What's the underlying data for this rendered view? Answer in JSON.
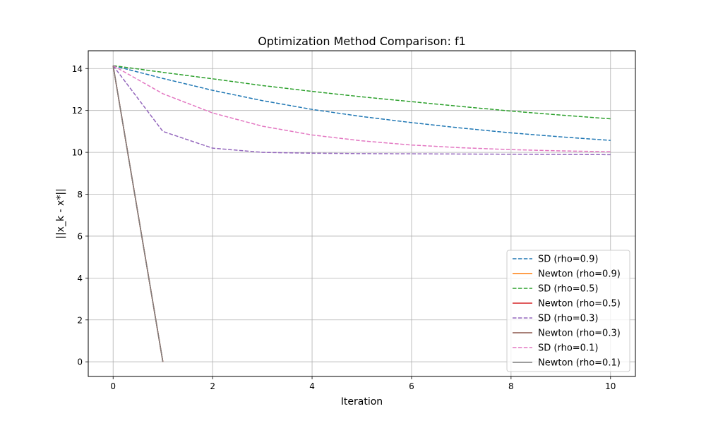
{
  "chart_data": {
    "type": "line",
    "title": "Optimization Method Comparison: f1",
    "xlabel": "Iteration",
    "ylabel": "||x_k - x*||",
    "xlim": [
      -0.5,
      10.5
    ],
    "ylim": [
      -0.7,
      14.85
    ],
    "xticks": [
      0,
      2,
      4,
      6,
      8,
      10
    ],
    "yticks": [
      0,
      2,
      4,
      6,
      8,
      10,
      12,
      14
    ],
    "grid": true,
    "legend_position": "lower-right",
    "series": [
      {
        "name": "SD (rho=0.9)",
        "method": "SD",
        "color": "#1f77b4",
        "dash": true,
        "x": [
          0,
          1,
          2,
          3,
          4,
          5,
          6,
          7,
          8,
          9,
          10
        ],
        "y": [
          14.14,
          13.53,
          12.96,
          12.47,
          12.05,
          11.71,
          11.42,
          11.16,
          10.93,
          10.74,
          10.57
        ]
      },
      {
        "name": "Newton (rho=0.9)",
        "method": "Newton",
        "color": "#ff7f0e",
        "dash": false,
        "x": [
          0,
          1
        ],
        "y": [
          14.14,
          0
        ]
      },
      {
        "name": "SD (rho=0.5)",
        "method": "SD",
        "color": "#2ca02c",
        "dash": true,
        "x": [
          0,
          1,
          2,
          3,
          4,
          5,
          6,
          7,
          8,
          9,
          10
        ],
        "y": [
          14.14,
          13.82,
          13.51,
          13.19,
          12.91,
          12.65,
          12.42,
          12.19,
          11.97,
          11.78,
          11.6
        ]
      },
      {
        "name": "Newton (rho=0.5)",
        "method": "Newton",
        "color": "#d62728",
        "dash": false,
        "x": [
          0,
          1
        ],
        "y": [
          14.14,
          0
        ]
      },
      {
        "name": "SD (rho=0.3)",
        "method": "SD",
        "color": "#9467bd",
        "dash": true,
        "x": [
          0,
          1,
          2,
          3,
          4,
          5,
          6,
          7,
          8,
          9,
          10
        ],
        "y": [
          14.14,
          11.0,
          10.2,
          10.0,
          9.96,
          9.94,
          9.93,
          9.92,
          9.91,
          9.9,
          9.89
        ]
      },
      {
        "name": "Newton (rho=0.3)",
        "method": "Newton",
        "color": "#8c564b",
        "dash": false,
        "x": [
          0,
          1
        ],
        "y": [
          14.14,
          0
        ]
      },
      {
        "name": "SD (rho=0.1)",
        "method": "SD",
        "color": "#e377c2",
        "dash": true,
        "x": [
          0,
          1,
          2,
          3,
          4,
          5,
          6,
          7,
          8,
          9,
          10
        ],
        "y": [
          14.14,
          12.8,
          11.88,
          11.25,
          10.83,
          10.55,
          10.35,
          10.22,
          10.13,
          10.07,
          10.03
        ]
      },
      {
        "name": "Newton (rho=0.1)",
        "method": "Newton",
        "color": "#7f7f7f",
        "dash": false,
        "x": [
          0,
          1
        ],
        "y": [
          14.14,
          0
        ]
      }
    ]
  }
}
